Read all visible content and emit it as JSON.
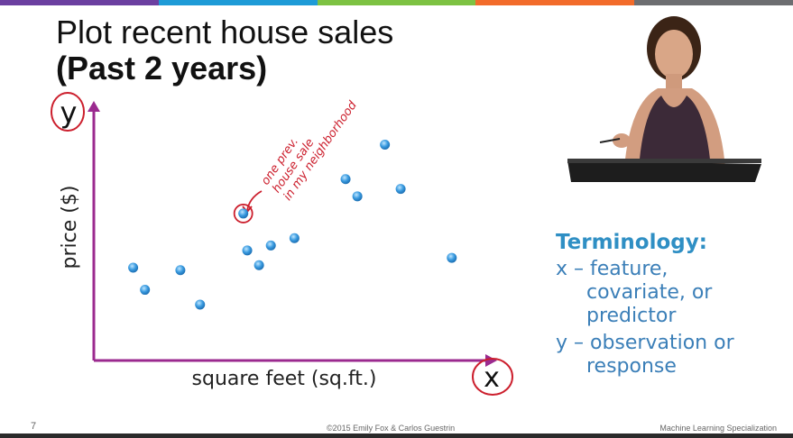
{
  "slide": {
    "title_line1": "Plot recent house sales",
    "title_line2": "(Past 2 years)",
    "slide_number": "7",
    "copyright": "©2015 Emily Fox & Carlos Guestrin",
    "course": "Machine Learning Specialization",
    "stripe_colors": [
      "#6b3fa0",
      "#1e9bd7",
      "#7dc242",
      "#f26b2a",
      "#6d6e71"
    ]
  },
  "annotations": {
    "x_circle_label": "x",
    "y_circle_label": "y",
    "note_lines": [
      "one prev.",
      "house sale",
      "in my neighborhood"
    ],
    "annotation_color": "#cc1f2d"
  },
  "terminology": {
    "heading": "Terminology:",
    "x_line1": "x – feature,",
    "x_line2": "covariate, or",
    "x_line3": "predictor",
    "y_line1": "y – observation or",
    "y_line2": "response"
  },
  "chart_data": {
    "type": "scatter",
    "xlabel": "square feet (sq.ft.)",
    "ylabel": "price ($)",
    "axis_color": "#9b2a8f",
    "point_color": "#3a9be0",
    "xlim": [
      0,
      100
    ],
    "ylim": [
      0,
      100
    ],
    "points": [
      {
        "x": 10,
        "y": 37
      },
      {
        "x": 13,
        "y": 28
      },
      {
        "x": 22,
        "y": 36
      },
      {
        "x": 27,
        "y": 22
      },
      {
        "x": 38,
        "y": 59,
        "highlighted": true
      },
      {
        "x": 39,
        "y": 44
      },
      {
        "x": 42,
        "y": 38
      },
      {
        "x": 45,
        "y": 46
      },
      {
        "x": 51,
        "y": 49
      },
      {
        "x": 64,
        "y": 73
      },
      {
        "x": 67,
        "y": 66
      },
      {
        "x": 74,
        "y": 87
      },
      {
        "x": 78,
        "y": 69
      },
      {
        "x": 91,
        "y": 41
      }
    ]
  }
}
